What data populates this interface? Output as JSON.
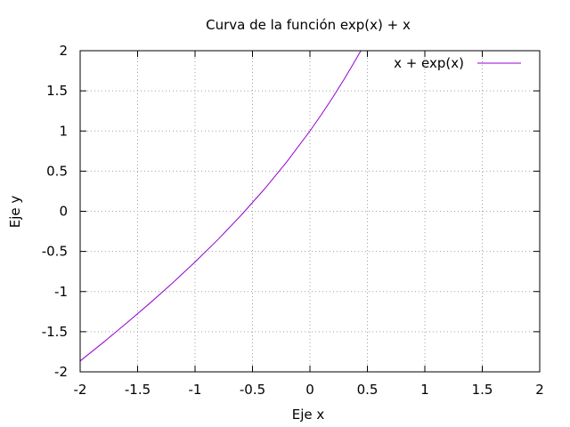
{
  "chart_data": {
    "type": "line",
    "title": "Curva de la función exp(x) + x",
    "xlabel": "Eje x",
    "ylabel": "Eje y",
    "xlim": [
      -2,
      2
    ],
    "ylim": [
      -2,
      2
    ],
    "grid": true,
    "legend_position": "top-right",
    "x_ticks": [
      -2,
      -1.5,
      -1,
      -0.5,
      0,
      0.5,
      1,
      1.5,
      2
    ],
    "x_tick_labels": [
      "-2",
      "-1.5",
      "-1",
      "-0.5",
      "0",
      "0.5",
      "1",
      "1.5",
      "2"
    ],
    "y_ticks": [
      -2,
      -1.5,
      -1,
      -0.5,
      0,
      0.5,
      1,
      1.5,
      2
    ],
    "y_tick_labels": [
      "-2",
      "-1.5",
      "-1",
      "-0.5",
      "0",
      "0.5",
      "1",
      "1.5",
      "2"
    ],
    "series": [
      {
        "name": "x + exp(x)",
        "color": "#9400d3",
        "x": [
          -2,
          -1.8,
          -1.6,
          -1.4,
          -1.2,
          -1,
          -0.8,
          -0.6,
          -0.4,
          -0.2,
          0,
          0.1,
          0.2,
          0.3,
          0.4,
          0.443
        ],
        "y": [
          -1.865,
          -1.635,
          -1.398,
          -1.153,
          -0.899,
          -0.632,
          -0.351,
          -0.051,
          0.27,
          0.619,
          1.0,
          1.205,
          1.421,
          1.65,
          1.892,
          2.0
        ]
      }
    ]
  }
}
